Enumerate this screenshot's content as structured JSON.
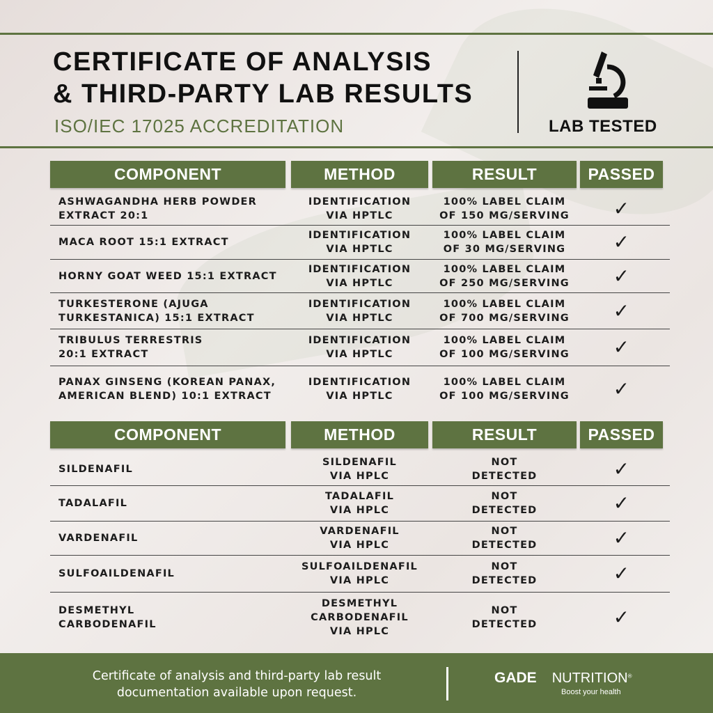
{
  "header": {
    "title_line1": "CERTIFICATE OF ANALYSIS",
    "title_line2": "& THIRD-PARTY LAB RESULTS",
    "subtitle": "ISO/IEC 17025 ACCREDITATION",
    "badge_label": "LAB TESTED",
    "badge_icon": "microscope-icon"
  },
  "columns": [
    "COMPONENT",
    "METHOD",
    "RESULT",
    "PASSED"
  ],
  "table1": [
    {
      "component": "ASHWAGANDHA HERB POWDER\nEXTRACT 20:1",
      "method": "IDENTIFICATION\nVIA HPTLC",
      "result": "100%  LABEL CLAIM\nOF 150 MG/SERVING",
      "passed": "✓"
    },
    {
      "component": "MACA ROOT 15:1 EXTRACT",
      "method": "IDENTIFICATION\nVIA HPTLC",
      "result": "100%  LABEL CLAIM\nOF 30 MG/SERVING",
      "passed": "✓"
    },
    {
      "component": "HORNY GOAT WEED 15:1 EXTRACT",
      "method": "IDENTIFICATION\nVIA HPTLC",
      "result": "100%  LABEL CLAIM\nOF 250 MG/SERVING",
      "passed": "✓"
    },
    {
      "component": "TURKESTERONE (AJUGA\nTURKESTANICA) 15:1 EXTRACT",
      "method": "IDENTIFICATION\nVIA HPTLC",
      "result": "100%  LABEL CLAIM\nOF 700 MG/SERVING",
      "passed": "✓"
    },
    {
      "component": "TRIBULUS TERRESTRIS\n20:1 EXTRACT",
      "method": "IDENTIFICATION\nVIA HPTLC",
      "result": "100%  LABEL CLAIM\nOF 100 MG/SERVING",
      "passed": "✓"
    },
    {
      "component": "PANAX GINSENG (KOREAN PANAX,\nAMERICAN BLEND) 10:1 EXTRACT",
      "method": "IDENTIFICATION\nVIA HPTLC",
      "result": "100%  LABEL CLAIM\nOF 100 MG/SERVING",
      "passed": "✓"
    }
  ],
  "table2": [
    {
      "component": "SILDENAFIL",
      "method": "SILDENAFIL\nVIA HPLC",
      "result": "NOT\nDETECTED",
      "passed": "✓"
    },
    {
      "component": "TADALAFIL",
      "method": "TADALAFIL\nVIA HPLC",
      "result": "NOT\nDETECTED",
      "passed": "✓"
    },
    {
      "component": "VARDENAFIL",
      "method": "VARDENAFIL\nVIA HPLC",
      "result": "NOT\nDETECTED",
      "passed": "✓"
    },
    {
      "component": "SULFOAILDENAFIL",
      "method": "SULFOAILDENAFIL\nVIA HPLC",
      "result": "NOT\nDETECTED",
      "passed": "✓"
    },
    {
      "component": "DESMETHYL\nCARBODENAFIL",
      "method": "DESMETHYL\nCARBODENAFIL\nVIA HPLC",
      "result": "NOT\nDETECTED",
      "passed": "✓"
    }
  ],
  "footer": {
    "text": "Certificate of analysis and third-party lab result\ndocumentation available upon request.",
    "brand_left": "GADE",
    "brand_right": "NUTRITION",
    "registered": "®",
    "tagline": "Boost your health"
  },
  "colors": {
    "accent": "#5e7341",
    "text": "#1c1c1c"
  }
}
